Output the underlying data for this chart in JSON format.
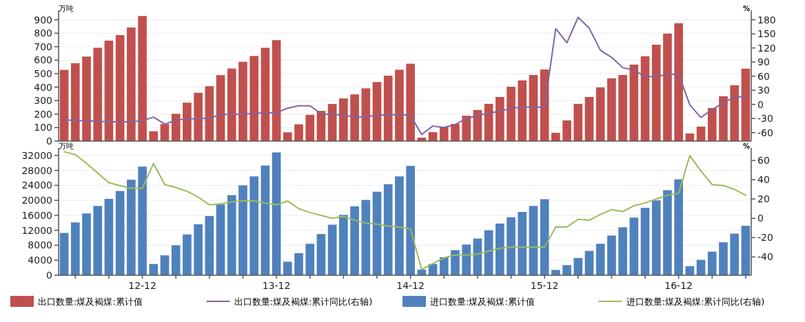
{
  "chart_data": [
    {
      "type": "bar",
      "categories": [
        null,
        null,
        null,
        null,
        null,
        null,
        null,
        null,
        null,
        null,
        null,
        null,
        null,
        null,
        null,
        null,
        null,
        null,
        null,
        null,
        null,
        null,
        null,
        null,
        null,
        null,
        null,
        null,
        null,
        null,
        null,
        null,
        null,
        null,
        null,
        null,
        null,
        null,
        null,
        null,
        null,
        null,
        null,
        null,
        null,
        null,
        null,
        null,
        null,
        null,
        null,
        null,
        null,
        null,
        null,
        null,
        null,
        null,
        null,
        null,
        null,
        null
      ],
      "series": [
        {
          "name": "出口数量:煤及褐煤:累计值",
          "color": "#c0504d",
          "values": [
            528,
            578,
            627,
            692,
            745,
            786,
            843,
            928,
            73,
            126,
            202,
            285,
            358,
            407,
            489,
            538,
            588,
            631,
            692,
            749,
            65,
            124,
            195,
            224,
            275,
            316,
            346,
            391,
            438,
            485,
            529,
            574,
            25,
            66,
            102,
            127,
            188,
            230,
            276,
            327,
            403,
            450,
            490,
            531,
            61,
            153,
            276,
            327,
            398,
            465,
            490,
            567,
            629,
            715,
            797,
            874,
            56,
            107,
            245,
            332,
            414,
            537
          ]
        },
        {
          "name": "出口数量:煤及褐煤:累计同比(右轴)",
          "type": "line",
          "axis": "y2",
          "color": "#8064a2",
          "values": [
            -33,
            -34,
            -35,
            -36,
            -37,
            -37,
            -37,
            -35,
            -27,
            -42,
            -34,
            -30,
            -31,
            -29,
            -22,
            -21,
            -21,
            -19,
            -18,
            -18,
            -8,
            -3,
            -3,
            -20,
            -22,
            -22,
            -28,
            -26,
            -24,
            -22,
            -22,
            -23,
            -64,
            -46,
            -49,
            -43,
            -30,
            -24,
            -18,
            -15,
            -8,
            -6,
            -6,
            -6,
            161,
            131,
            185,
            162,
            115,
            100,
            78,
            73,
            59,
            59,
            64,
            64,
            -1,
            -28,
            -11,
            3,
            16,
            16
          ]
        }
      ],
      "ylabel": "万吨",
      "y2label": "%",
      "ylim": [
        0,
        970
      ],
      "yticks": [
        0,
        100,
        200,
        300,
        400,
        500,
        600,
        700,
        800,
        900
      ],
      "y2lim": [
        -78,
        200
      ],
      "y2ticks": [
        -60,
        -30,
        0,
        30,
        60,
        90,
        120,
        150,
        180
      ],
      "grid": "y",
      "legend": "bottom",
      "tick_labels": "y"
    },
    {
      "type": "bar",
      "categories": [
        null,
        null,
        null,
        null,
        null,
        null,
        null,
        "12-12",
        null,
        null,
        null,
        null,
        null,
        null,
        null,
        null,
        null,
        null,
        null,
        "13-12",
        null,
        null,
        null,
        null,
        null,
        null,
        null,
        null,
        null,
        null,
        null,
        "14-12",
        null,
        null,
        null,
        null,
        null,
        null,
        null,
        null,
        null,
        null,
        null,
        "15-12",
        null,
        null,
        null,
        null,
        null,
        null,
        null,
        null,
        null,
        null,
        null,
        "16-12",
        null,
        null,
        null,
        null,
        null,
        null
      ],
      "series": [
        {
          "name": "进口数量:煤及褐煤:累计值",
          "color": "#4f81bd",
          "values": [
            11300,
            14100,
            16500,
            18500,
            20400,
            22500,
            25500,
            29000,
            3000,
            5300,
            8000,
            10900,
            13600,
            15800,
            18900,
            21400,
            24000,
            26400,
            29300,
            32800,
            3600,
            5900,
            8400,
            11000,
            13500,
            16100,
            18400,
            20100,
            22300,
            24300,
            26400,
            29200,
            1500,
            3000,
            4800,
            6700,
            8200,
            9800,
            12000,
            13800,
            15500,
            16900,
            18500,
            20300,
            1400,
            2700,
            4600,
            6500,
            8400,
            10600,
            12800,
            15400,
            18000,
            20000,
            22700,
            25600,
            2400,
            4100,
            6300,
            8800,
            11100,
            13200
          ]
        },
        {
          "name": "进口数量:煤及褐煤:累计同比(右轴)",
          "type": "line",
          "axis": "y2",
          "color": "#9bbb59",
          "values": [
            69,
            66,
            57,
            47,
            37,
            34,
            31,
            31,
            57,
            35,
            32,
            28,
            22,
            14,
            15,
            17,
            18,
            18,
            16,
            14,
            18,
            10,
            6,
            3,
            0,
            2,
            -2,
            -5,
            -6,
            -8,
            -9,
            -11,
            -53,
            -47,
            -41,
            -38,
            -38,
            -37,
            -34,
            -31,
            -30,
            -30,
            -30,
            -30,
            -9,
            -9,
            -1,
            -2,
            4,
            9,
            7,
            13,
            16,
            20,
            24,
            26,
            65,
            49,
            35,
            34,
            30,
            24
          ]
        }
      ],
      "ylabel": "万吨",
      "y2label": "%",
      "ylim": [
        0,
        34000
      ],
      "yticks": [
        0,
        4000,
        8000,
        12000,
        16000,
        20000,
        24000,
        28000,
        32000
      ],
      "y2lim": [
        -59,
        73
      ],
      "y2ticks": [
        -40,
        -20,
        0,
        20,
        40,
        60
      ],
      "grid": "y",
      "legend": "bottom"
    }
  ]
}
